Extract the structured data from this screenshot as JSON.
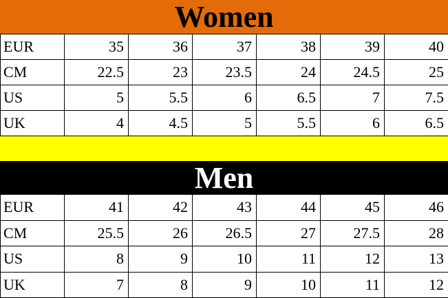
{
  "women": {
    "title": "Women",
    "rows": [
      {
        "label": "EUR",
        "values": [
          "35",
          "36",
          "37",
          "38",
          "39",
          "40"
        ]
      },
      {
        "label": "CM",
        "values": [
          "22.5",
          "23",
          "23.5",
          "24",
          "24.5",
          "25"
        ]
      },
      {
        "label": "US",
        "values": [
          "5",
          "5.5",
          "6",
          "6.5",
          "7",
          "7.5"
        ]
      },
      {
        "label": "UK",
        "values": [
          "4",
          "4.5",
          "5",
          "5.5",
          "6",
          "6.5"
        ]
      }
    ]
  },
  "men": {
    "title": "Men",
    "rows": [
      {
        "label": "EUR",
        "values": [
          "41",
          "42",
          "43",
          "44",
          "45",
          "46"
        ]
      },
      {
        "label": "CM",
        "values": [
          "25.5",
          "26",
          "26.5",
          "27",
          "27.5",
          "28"
        ]
      },
      {
        "label": "US",
        "values": [
          "8",
          "9",
          "10",
          "11",
          "12",
          "13"
        ]
      },
      {
        "label": "UK",
        "values": [
          "7",
          "8",
          "9",
          "10",
          "11",
          "12"
        ]
      }
    ]
  },
  "colors": {
    "women_header": "#e36c09",
    "separator": "#ffff00",
    "men_header": "#000000"
  }
}
